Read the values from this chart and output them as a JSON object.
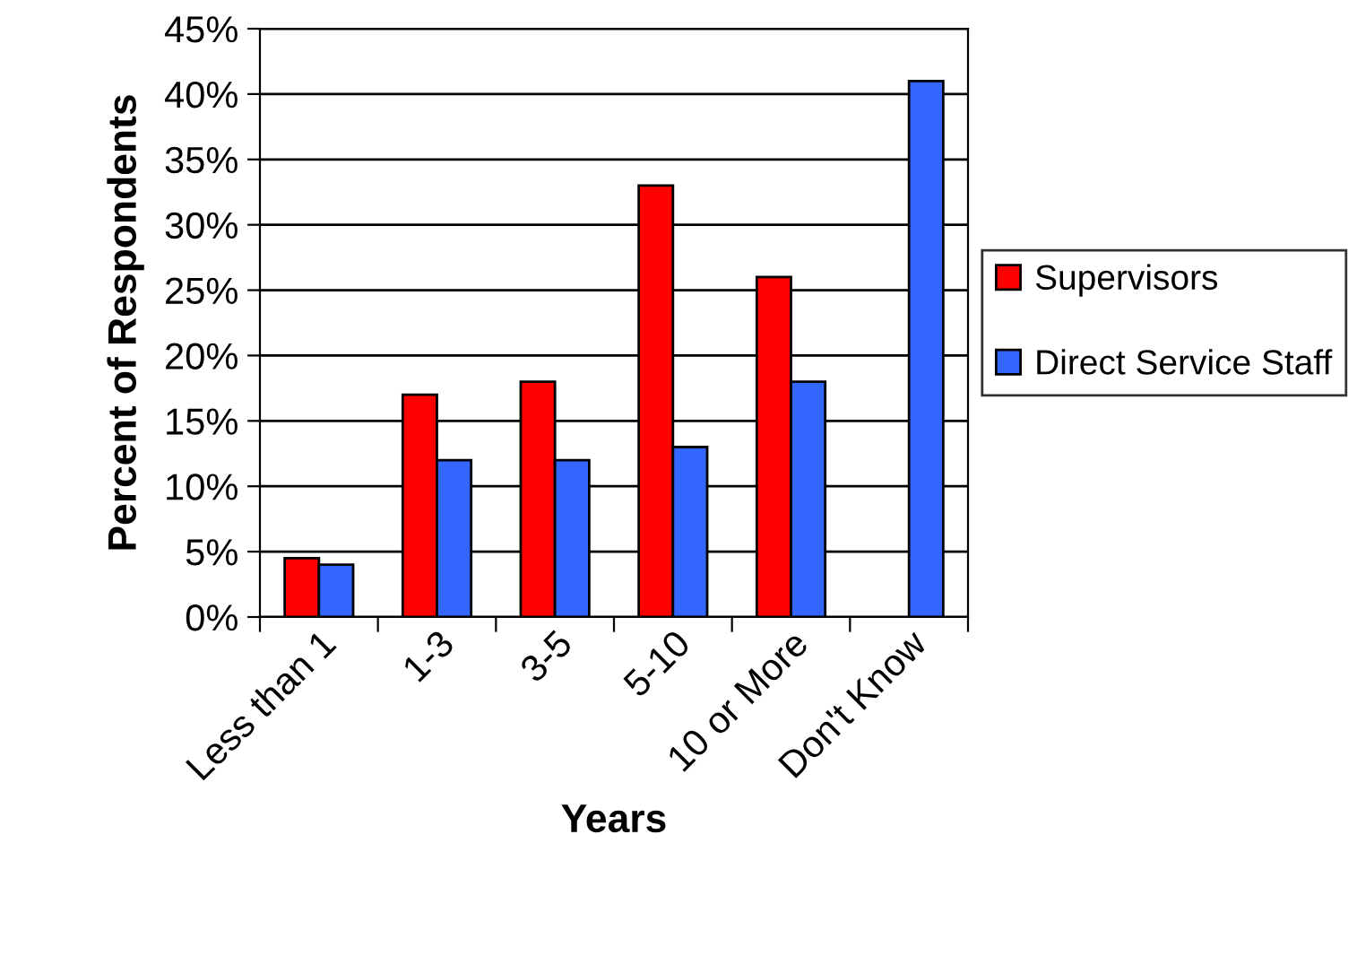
{
  "chart_data": {
    "type": "bar",
    "xlabel": "Years",
    "ylabel": "Percent of Respondents",
    "categories": [
      "Less than 1",
      "1-3",
      "3-5",
      "5-10",
      "10 or More",
      "Don't Know"
    ],
    "series": [
      {
        "name": "Supervisors",
        "color": "#ff0000",
        "values": [
          4.5,
          17,
          18,
          33,
          26,
          null
        ]
      },
      {
        "name": "Direct Service Staff",
        "color": "#3366ff",
        "values": [
          4,
          12,
          12,
          13,
          18,
          41
        ]
      }
    ],
    "ylim": [
      0,
      45
    ],
    "yticks": [
      {
        "value": 0,
        "label": "0%"
      },
      {
        "value": 5,
        "label": "5%"
      },
      {
        "value": 10,
        "label": "10%"
      },
      {
        "value": 15,
        "label": "15%"
      },
      {
        "value": 20,
        "label": "20%"
      },
      {
        "value": 25,
        "label": "25%"
      },
      {
        "value": 30,
        "label": "30%"
      },
      {
        "value": 35,
        "label": "35%"
      },
      {
        "value": 40,
        "label": "40%"
      },
      {
        "value": 45,
        "label": "45%"
      }
    ],
    "grid": "y",
    "legend": "right"
  }
}
